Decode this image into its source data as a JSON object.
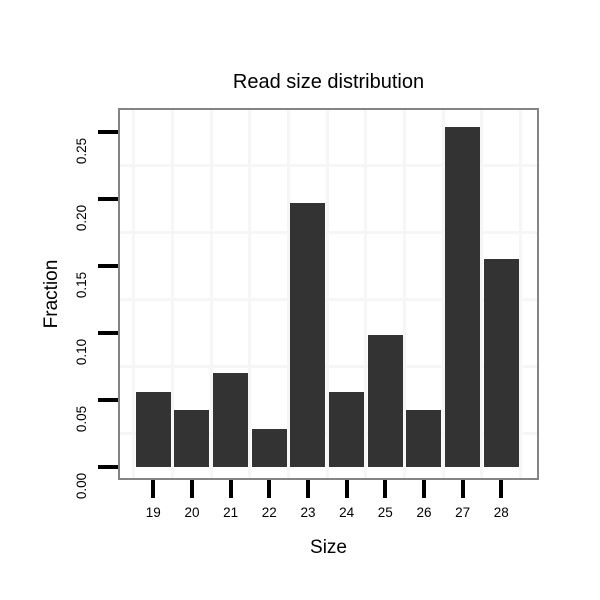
{
  "chart_data": {
    "type": "bar",
    "title": "Read size distribution",
    "xlabel": "Size",
    "ylabel": "Fraction",
    "categories": [
      "19",
      "20",
      "21",
      "22",
      "23",
      "24",
      "25",
      "26",
      "27",
      "28"
    ],
    "values": [
      0.0563,
      0.0423,
      0.0704,
      0.0282,
      0.1972,
      0.0563,
      0.0986,
      0.0423,
      0.2535,
      0.1549
    ],
    "y_tick_labels": [
      "0.00",
      "0.05",
      "0.10",
      "0.15",
      "0.20",
      "0.25"
    ],
    "y_tick_values": [
      0.0,
      0.05,
      0.1,
      0.15,
      0.2,
      0.25
    ],
    "ylim": [
      0,
      0.2535
    ],
    "grid": "minor-only",
    "legend": "none",
    "colors": {
      "bar_fill": "#333333",
      "panel_border": "#848484",
      "gridline": "#f6f6f6",
      "axis_tick": "#000000",
      "text": "#000000",
      "background": "#ffffff"
    }
  }
}
